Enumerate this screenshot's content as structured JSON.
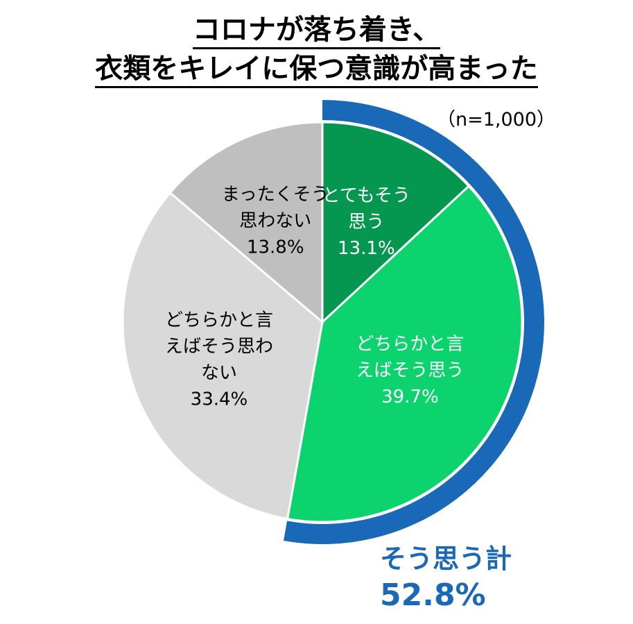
{
  "title": {
    "line1": "コロナが落ち着き、",
    "line2": "衣類をキレイに保つ意識が高まった"
  },
  "sample_note": "（n=1,000）",
  "total": {
    "label": "そう思う計",
    "value": "52.8%",
    "color": "#1a68b8"
  },
  "chart_data": {
    "type": "pie",
    "start": "12 o'clock, clockwise",
    "slices": [
      {
        "label": [
          "とてもそう",
          "思う"
        ],
        "value": 13.1,
        "value_text": "13.1%",
        "color": "#05964f",
        "text_color": "#ffffff"
      },
      {
        "label": [
          "どちらかと言",
          "えばそう思う"
        ],
        "value": 39.7,
        "value_text": "39.7%",
        "color": "#0cd36e",
        "text_color": "#ffffff"
      },
      {
        "label": [
          "どちらかと言",
          "えばそう思わ",
          "ない"
        ],
        "value": 33.4,
        "value_text": "33.4%",
        "color": "#d9d9d9",
        "text_color": "#000000"
      },
      {
        "label": [
          "まったくそう",
          "思わない"
        ],
        "value": 13.8,
        "value_text": "13.8%",
        "color": "#bfbfbf",
        "text_color": "#000000"
      }
    ],
    "highlight_arc": {
      "covers": "そう思う計",
      "value": 52.8,
      "color": "#1a68b8"
    }
  }
}
